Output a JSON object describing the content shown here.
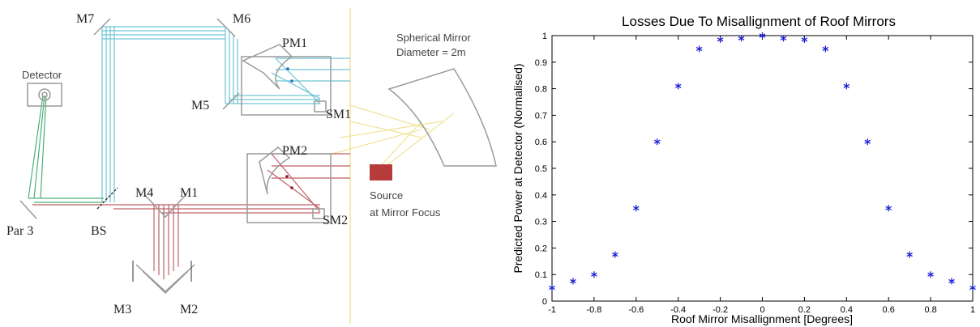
{
  "diagram": {
    "labels": {
      "m7": "M7",
      "m6": "M6",
      "pm1": "PM1",
      "m5": "M5",
      "sm1": "SM1",
      "pm2": "PM2",
      "sm2": "SM2",
      "m4": "M4",
      "m1": "M1",
      "m3": "M3",
      "m2": "M2",
      "par3": "Par 3",
      "bs": "BS",
      "detector": "Detector",
      "spherical_line1": "Spherical Mirror",
      "spherical_line2": "Diameter = 2m",
      "source_line1": "Source",
      "source_line2": "at Mirror Focus"
    },
    "colors": {
      "blue_beam": "#6fc3d6",
      "red_beam": "#b5474e",
      "green_beam": "#4caf7a",
      "yellow_beam": "#f0e49a",
      "mirror_outline": "#9a9a9a",
      "source_block": "#b63c3c"
    }
  },
  "chart_data": {
    "type": "scatter",
    "title": "Losses Due To Misallignment of Roof Mirrors",
    "xlabel": "Roof Mirror Misallignment [Degrees]",
    "ylabel": "Predicted Power at Detector (Normalised)",
    "xlim": [
      -1,
      1
    ],
    "ylim": [
      0,
      1
    ],
    "x_ticks": [
      "-1",
      "-0.8",
      "-0.6",
      "-0.4",
      "-0.2",
      "0",
      "0.2",
      "0.4",
      "0.6",
      "0.8",
      "1"
    ],
    "y_ticks": [
      "0",
      "0.1",
      "0.2",
      "0.3",
      "0.4",
      "0.5",
      "0.6",
      "0.7",
      "0.8",
      "0.9",
      "1"
    ],
    "grid": false,
    "marker": "*",
    "marker_color": "#1f1fd6",
    "x": [
      -1,
      -0.9,
      -0.8,
      -0.7,
      -0.6,
      -0.5,
      -0.4,
      -0.3,
      -0.2,
      -0.1,
      0,
      0.1,
      0.2,
      0.3,
      0.4,
      0.5,
      0.6,
      0.7,
      0.8,
      0.9,
      1
    ],
    "y": [
      0.05,
      0.075,
      0.1,
      0.175,
      0.35,
      0.6,
      0.81,
      0.95,
      0.985,
      0.99,
      1.0,
      0.99,
      0.985,
      0.95,
      0.81,
      0.6,
      0.35,
      0.175,
      0.1,
      0.075,
      0.05
    ]
  }
}
